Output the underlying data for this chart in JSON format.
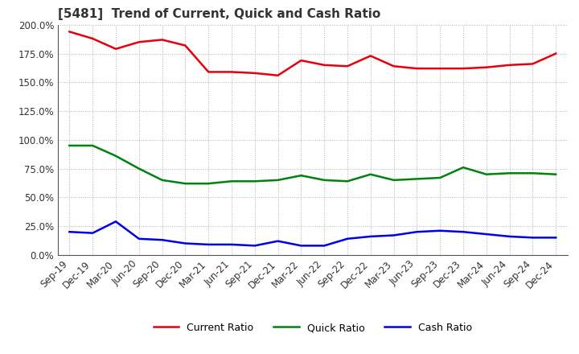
{
  "title": "[5481]  Trend of Current, Quick and Cash Ratio",
  "x_labels": [
    "Sep-19",
    "Dec-19",
    "Mar-20",
    "Jun-20",
    "Sep-20",
    "Dec-20",
    "Mar-21",
    "Jun-21",
    "Sep-21",
    "Dec-21",
    "Mar-22",
    "Jun-22",
    "Sep-22",
    "Dec-22",
    "Mar-23",
    "Jun-23",
    "Sep-23",
    "Dec-23",
    "Mar-24",
    "Jun-24",
    "Sep-24",
    "Dec-24"
  ],
  "current_ratio": [
    1.94,
    1.88,
    1.79,
    1.85,
    1.87,
    1.82,
    1.59,
    1.59,
    1.58,
    1.56,
    1.69,
    1.65,
    1.64,
    1.73,
    1.64,
    1.62,
    1.62,
    1.62,
    1.63,
    1.65,
    1.66,
    1.75
  ],
  "quick_ratio": [
    0.95,
    0.95,
    0.86,
    0.75,
    0.65,
    0.62,
    0.62,
    0.64,
    0.64,
    0.65,
    0.69,
    0.65,
    0.64,
    0.7,
    0.65,
    0.66,
    0.67,
    0.76,
    0.7,
    0.71,
    0.71,
    0.7
  ],
  "cash_ratio": [
    0.2,
    0.19,
    0.29,
    0.14,
    0.13,
    0.1,
    0.09,
    0.09,
    0.08,
    0.12,
    0.08,
    0.08,
    0.14,
    0.16,
    0.17,
    0.2,
    0.21,
    0.2,
    0.18,
    0.16,
    0.15,
    0.15
  ],
  "current_color": "#e8000d",
  "quick_color": "#00820d",
  "cash_color": "#0000e8",
  "ylim": [
    0.0,
    2.0
  ],
  "yticks": [
    0.0,
    0.25,
    0.5,
    0.75,
    1.0,
    1.25,
    1.5,
    1.75,
    2.0
  ],
  "ytick_labels": [
    "0.0%",
    "25.0%",
    "50.0%",
    "75.0%",
    "100.0%",
    "125.0%",
    "150.0%",
    "175.0%",
    "200.0%"
  ],
  "line_width": 1.8,
  "background_color": "#ffffff",
  "grid_color": "#b0b0b0",
  "legend_labels": [
    "Current Ratio",
    "Quick Ratio",
    "Cash Ratio"
  ],
  "title_fontsize": 11,
  "tick_fontsize": 8.5,
  "legend_fontsize": 9
}
